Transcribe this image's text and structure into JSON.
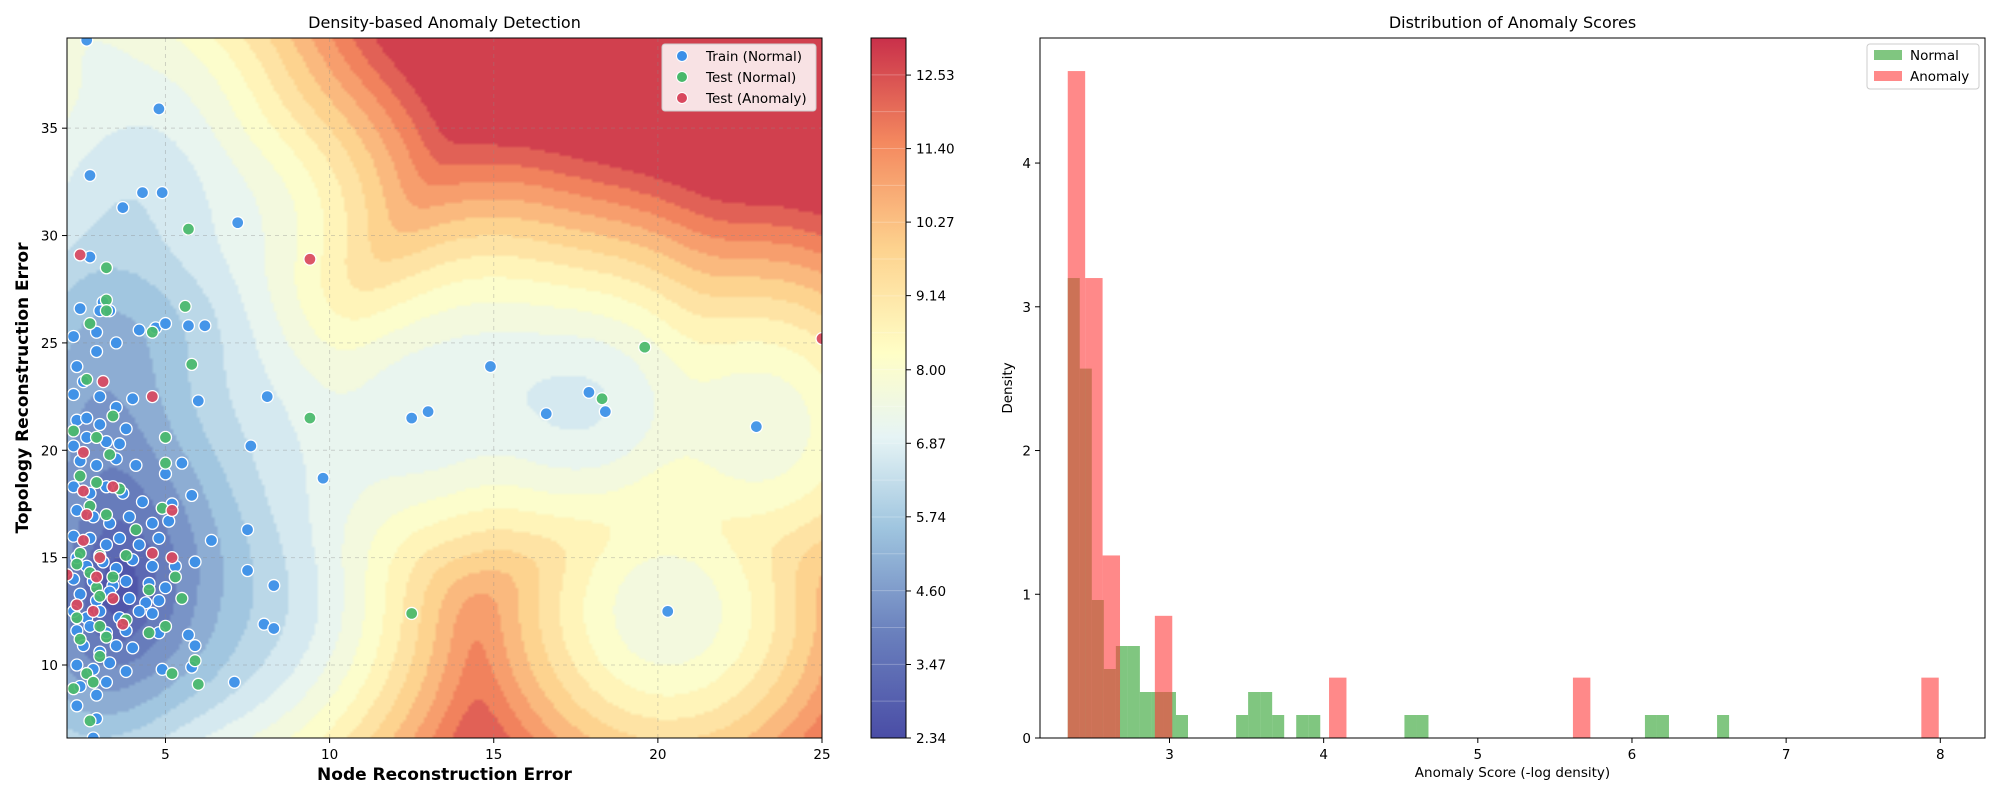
{
  "colors": {
    "train_normal": "#3b8fe8",
    "test_normal": "#48b86a",
    "test_anomaly": "#d9485e",
    "hist_normal": "#2ca02c",
    "hist_anomaly": "#ff3b3b",
    "colormap": [
      "#4a4da6",
      "#6a80bd",
      "#9fc5df",
      "#e6f4f5",
      "#fffec6",
      "#fdd28e",
      "#f4895f",
      "#c9304a"
    ]
  },
  "chart_data": [
    {
      "type": "scatter",
      "title": "Density-based Anomaly Detection",
      "xlabel": "Node Reconstruction Error",
      "ylabel": "Topology Reconstruction Error",
      "xlim": [
        2.0,
        25.0
      ],
      "ylim": [
        6.6,
        39.2
      ],
      "xticks": [
        "5",
        "10",
        "15",
        "20",
        "25"
      ],
      "yticks": [
        "10",
        "15",
        "20",
        "25",
        "30",
        "35"
      ],
      "grid": true,
      "legend_position": "top-right",
      "contour": {
        "type": "filled-contour",
        "colorbar_min": 2.34,
        "colorbar_max": 13.1,
        "colorbar_ticks": [
          "2.34",
          "3.47",
          "4.60",
          "5.74",
          "6.87",
          "8.00",
          "9.14",
          "10.27",
          "11.40",
          "12.53"
        ]
      },
      "series": [
        {
          "name": "Train (Normal)",
          "points": [
            [
              2.6,
              39.1
            ],
            [
              4.8,
              35.9
            ],
            [
              2.7,
              32.8
            ],
            [
              4.3,
              32.0
            ],
            [
              4.9,
              32.0
            ],
            [
              3.7,
              31.3
            ],
            [
              7.2,
              30.6
            ],
            [
              2.7,
              29.0
            ],
            [
              2.4,
              26.6
            ],
            [
              3.1,
              26.9
            ],
            [
              3.0,
              26.5
            ],
            [
              2.2,
              25.3
            ],
            [
              3.3,
              26.5
            ],
            [
              2.9,
              25.5
            ],
            [
              4.2,
              25.6
            ],
            [
              4.7,
              25.7
            ],
            [
              5.0,
              25.9
            ],
            [
              5.7,
              25.8
            ],
            [
              6.2,
              25.8
            ],
            [
              3.5,
              25.0
            ],
            [
              2.9,
              24.6
            ],
            [
              2.3,
              23.9
            ],
            [
              2.5,
              23.2
            ],
            [
              2.2,
              22.6
            ],
            [
              3.0,
              22.5
            ],
            [
              3.5,
              22.0
            ],
            [
              2.3,
              21.4
            ],
            [
              2.6,
              21.5
            ],
            [
              3.0,
              21.2
            ],
            [
              3.8,
              21.0
            ],
            [
              4.0,
              22.4
            ],
            [
              6.0,
              22.3
            ],
            [
              8.1,
              22.5
            ],
            [
              2.2,
              20.2
            ],
            [
              2.6,
              20.6
            ],
            [
              3.2,
              20.4
            ],
            [
              3.6,
              20.3
            ],
            [
              2.4,
              19.5
            ],
            [
              2.9,
              19.3
            ],
            [
              3.5,
              19.6
            ],
            [
              4.1,
              19.3
            ],
            [
              5.0,
              18.9
            ],
            [
              5.5,
              19.4
            ],
            [
              7.6,
              20.2
            ],
            [
              9.8,
              18.7
            ],
            [
              2.2,
              18.3
            ],
            [
              2.7,
              18.0
            ],
            [
              3.2,
              18.3
            ],
            [
              3.7,
              18.0
            ],
            [
              4.3,
              17.6
            ],
            [
              5.2,
              17.5
            ],
            [
              5.8,
              17.9
            ],
            [
              2.3,
              17.2
            ],
            [
              2.8,
              16.9
            ],
            [
              3.3,
              16.6
            ],
            [
              3.9,
              16.9
            ],
            [
              4.6,
              16.6
            ],
            [
              5.1,
              16.7
            ],
            [
              2.2,
              16.0
            ],
            [
              2.7,
              15.9
            ],
            [
              3.2,
              15.6
            ],
            [
              3.6,
              15.9
            ],
            [
              4.2,
              15.6
            ],
            [
              4.8,
              15.9
            ],
            [
              6.4,
              15.8
            ],
            [
              7.5,
              16.3
            ],
            [
              2.3,
              15.0
            ],
            [
              2.6,
              14.6
            ],
            [
              3.1,
              14.8
            ],
            [
              3.5,
              14.5
            ],
            [
              4.0,
              14.9
            ],
            [
              4.6,
              14.6
            ],
            [
              5.3,
              14.6
            ],
            [
              5.9,
              14.8
            ],
            [
              7.5,
              14.4
            ],
            [
              2.2,
              14.0
            ],
            [
              2.8,
              13.9
            ],
            [
              3.4,
              13.7
            ],
            [
              3.8,
              13.9
            ],
            [
              4.5,
              13.8
            ],
            [
              5.0,
              13.6
            ],
            [
              8.3,
              13.7
            ],
            [
              2.4,
              13.3
            ],
            [
              2.9,
              13.0
            ],
            [
              3.3,
              13.4
            ],
            [
              3.9,
              13.1
            ],
            [
              4.4,
              12.9
            ],
            [
              4.8,
              13.0
            ],
            [
              2.2,
              12.5
            ],
            [
              2.6,
              12.2
            ],
            [
              3.0,
              12.5
            ],
            [
              3.6,
              12.2
            ],
            [
              4.2,
              12.5
            ],
            [
              4.6,
              12.4
            ],
            [
              2.3,
              11.6
            ],
            [
              2.7,
              11.8
            ],
            [
              3.2,
              11.5
            ],
            [
              3.8,
              11.6
            ],
            [
              4.8,
              11.5
            ],
            [
              5.7,
              11.4
            ],
            [
              8.0,
              11.9
            ],
            [
              8.3,
              11.7
            ],
            [
              2.5,
              10.9
            ],
            [
              3.0,
              10.6
            ],
            [
              3.5,
              10.9
            ],
            [
              4.0,
              10.8
            ],
            [
              5.9,
              10.9
            ],
            [
              2.3,
              10.0
            ],
            [
              2.8,
              9.8
            ],
            [
              3.3,
              10.1
            ],
            [
              3.8,
              9.7
            ],
            [
              4.9,
              9.8
            ],
            [
              5.8,
              9.9
            ],
            [
              2.4,
              9.0
            ],
            [
              2.9,
              8.6
            ],
            [
              3.2,
              9.2
            ],
            [
              2.3,
              8.1
            ],
            [
              2.9,
              7.5
            ],
            [
              7.1,
              9.2
            ],
            [
              2.8,
              6.6
            ],
            [
              14.9,
              23.9
            ],
            [
              12.5,
              21.5
            ],
            [
              13.0,
              21.8
            ],
            [
              16.6,
              21.7
            ],
            [
              17.9,
              22.7
            ],
            [
              18.4,
              21.8
            ],
            [
              23.0,
              21.1
            ],
            [
              20.3,
              12.5
            ]
          ]
        },
        {
          "name": "Test (Normal)",
          "points": [
            [
              5.7,
              30.3
            ],
            [
              3.2,
              28.5
            ],
            [
              3.2,
              27.0
            ],
            [
              3.2,
              26.5
            ],
            [
              2.7,
              25.9
            ],
            [
              4.6,
              25.5
            ],
            [
              5.6,
              26.7
            ],
            [
              5.8,
              24.0
            ],
            [
              2.6,
              23.3
            ],
            [
              3.4,
              21.6
            ],
            [
              2.2,
              20.9
            ],
            [
              2.9,
              20.6
            ],
            [
              3.3,
              19.8
            ],
            [
              2.4,
              18.8
            ],
            [
              2.9,
              18.5
            ],
            [
              3.6,
              18.2
            ],
            [
              5.0,
              19.4
            ],
            [
              5.0,
              20.6
            ],
            [
              2.7,
              17.4
            ],
            [
              3.2,
              17.0
            ],
            [
              4.1,
              16.3
            ],
            [
              4.9,
              17.3
            ],
            [
              2.4,
              15.2
            ],
            [
              3.0,
              15.1
            ],
            [
              3.8,
              15.1
            ],
            [
              2.3,
              14.7
            ],
            [
              2.7,
              14.3
            ],
            [
              3.4,
              14.1
            ],
            [
              5.3,
              14.1
            ],
            [
              2.9,
              13.6
            ],
            [
              4.5,
              13.5
            ],
            [
              3.0,
              13.2
            ],
            [
              5.5,
              13.1
            ],
            [
              2.3,
              12.2
            ],
            [
              3.0,
              11.8
            ],
            [
              3.8,
              12.1
            ],
            [
              5.0,
              11.8
            ],
            [
              4.5,
              11.5
            ],
            [
              2.4,
              11.2
            ],
            [
              3.2,
              11.3
            ],
            [
              5.9,
              10.2
            ],
            [
              2.6,
              9.6
            ],
            [
              3.0,
              10.4
            ],
            [
              5.2,
              9.6
            ],
            [
              6.0,
              9.1
            ],
            [
              2.2,
              8.9
            ],
            [
              2.8,
              9.2
            ],
            [
              2.7,
              7.4
            ],
            [
              9.4,
              21.5
            ],
            [
              12.5,
              12.4
            ],
            [
              19.6,
              24.8
            ],
            [
              18.3,
              22.4
            ]
          ]
        },
        {
          "name": "Test (Anomaly)",
          "points": [
            [
              2.4,
              29.1
            ],
            [
              9.4,
              28.9
            ],
            [
              3.1,
              23.2
            ],
            [
              4.6,
              22.5
            ],
            [
              2.5,
              19.9
            ],
            [
              2.5,
              18.1
            ],
            [
              3.4,
              18.3
            ],
            [
              2.6,
              17.0
            ],
            [
              5.2,
              17.2
            ],
            [
              2.5,
              15.8
            ],
            [
              3.0,
              15.0
            ],
            [
              4.6,
              15.2
            ],
            [
              5.2,
              15.0
            ],
            [
              2.0,
              14.2
            ],
            [
              2.9,
              14.1
            ],
            [
              3.4,
              13.1
            ],
            [
              2.3,
              12.8
            ],
            [
              2.8,
              12.5
            ],
            [
              3.7,
              11.9
            ],
            [
              25.0,
              25.2
            ]
          ]
        }
      ]
    },
    {
      "type": "bar",
      "title": "Distribution of Anomaly Scores",
      "xlabel": "Anomaly Score (-log density)",
      "ylabel": "Density",
      "xlim": [
        2.16,
        8.29
      ],
      "ylim": [
        0,
        4.87
      ],
      "xticks": [
        "3",
        "4",
        "5",
        "6",
        "7",
        "8"
      ],
      "yticks": [
        "0",
        "1",
        "2",
        "3",
        "4"
      ],
      "grid": false,
      "legend_position": "top-right",
      "series": [
        {
          "name": "Normal",
          "bin_edges": [
            2.34,
            2.418,
            2.496,
            2.574,
            2.652,
            2.73,
            2.808,
            2.886,
            2.964,
            3.042,
            3.12,
            3.198,
            3.276,
            3.354,
            3.432,
            3.51,
            3.588,
            3.666,
            3.744,
            3.822,
            3.9,
            3.978,
            4.056,
            4.134,
            4.212,
            4.29,
            4.368,
            4.446,
            4.524,
            4.602,
            4.68,
            4.758,
            4.836,
            4.914,
            4.992,
            5.07,
            5.148,
            5.226,
            5.304,
            5.382,
            5.46,
            5.538,
            5.616,
            5.694,
            5.772,
            5.85,
            5.928,
            6.006,
            6.084,
            6.162,
            6.24,
            6.318,
            6.396,
            6.474,
            6.552,
            6.63
          ],
          "values": [
            3.2,
            2.57,
            0.96,
            0.48,
            0.64,
            0.64,
            0.32,
            0.32,
            0.32,
            0.16,
            0,
            0,
            0,
            0,
            0.16,
            0.32,
            0.32,
            0.16,
            0,
            0.16,
            0.16,
            0,
            0,
            0,
            0,
            0,
            0,
            0,
            0.16,
            0.16,
            0,
            0,
            0,
            0,
            0,
            0,
            0,
            0,
            0,
            0,
            0,
            0,
            0,
            0,
            0,
            0,
            0,
            0,
            0.16,
            0.16,
            0,
            0,
            0,
            0,
            0.16
          ]
        },
        {
          "name": "Anomaly",
          "bin_edges": [
            2.34,
            2.453,
            2.566,
            2.679,
            2.792,
            2.905,
            3.018,
            3.131,
            3.244,
            3.357,
            3.47,
            3.583,
            3.696,
            3.809,
            3.922,
            4.035,
            4.148,
            4.261,
            4.374,
            4.487,
            4.6,
            4.713,
            4.826,
            4.939,
            5.052,
            5.165,
            5.278,
            5.391,
            5.504,
            5.617,
            5.73,
            5.843,
            5.956,
            6.069,
            6.182,
            6.295,
            6.408,
            6.521,
            6.634,
            6.747,
            6.86,
            6.973,
            7.086,
            7.199,
            7.312,
            7.425,
            7.538,
            7.651,
            7.764,
            7.877,
            7.99
          ],
          "values": [
            4.64,
            3.2,
            1.27,
            0,
            0,
            0.85,
            0,
            0,
            0,
            0,
            0,
            0,
            0,
            0,
            0,
            0.42,
            0,
            0,
            0,
            0,
            0,
            0,
            0,
            0,
            0,
            0,
            0,
            0,
            0,
            0.42,
            0,
            0,
            0,
            0,
            0,
            0,
            0,
            0,
            0,
            0,
            0,
            0,
            0,
            0,
            0,
            0,
            0,
            0,
            0,
            0.42
          ]
        }
      ]
    }
  ]
}
